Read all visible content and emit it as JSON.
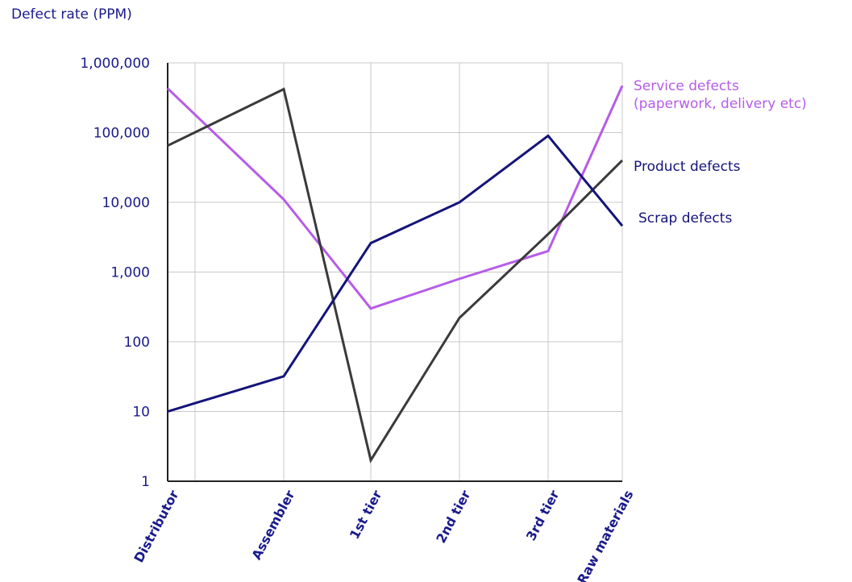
{
  "chart_data": {
    "type": "line",
    "ylabel": "Defect rate (PPM)",
    "yscale": "log",
    "ylim": [
      1,
      1000000
    ],
    "yticks": [
      {
        "value": 1,
        "label": "1"
      },
      {
        "value": 10,
        "label": "10"
      },
      {
        "value": 100,
        "label": "100"
      },
      {
        "value": 1000,
        "label": "1,000"
      },
      {
        "value": 10000,
        "label": "10,000"
      },
      {
        "value": 100000,
        "label": "100,000"
      },
      {
        "value": 1000000,
        "label": "1,000,000"
      }
    ],
    "categories": [
      "Distributor",
      "Assembler",
      "1st tier",
      "2nd tier",
      "3rd tier",
      "Raw materials"
    ],
    "grid": true,
    "series": [
      {
        "name": "Service defects (paperwork, delivery etc)",
        "label_lines": [
          "Service defects",
          "(paperwork, delivery etc)"
        ],
        "color": "#b65ce8",
        "values": [
          430000,
          11000,
          300,
          800,
          2000,
          470000
        ]
      },
      {
        "name": "Product defects",
        "label_lines": [
          "Product defects"
        ],
        "color": "#3a3a3a",
        "values": [
          65000,
          420000,
          2,
          220,
          3500,
          40000
        ]
      },
      {
        "name": "Scrap defects",
        "label_lines": [
          "Scrap defects"
        ],
        "color": "#14147a",
        "values": [
          10,
          32,
          2600,
          10000,
          90000,
          4600
        ]
      }
    ]
  }
}
